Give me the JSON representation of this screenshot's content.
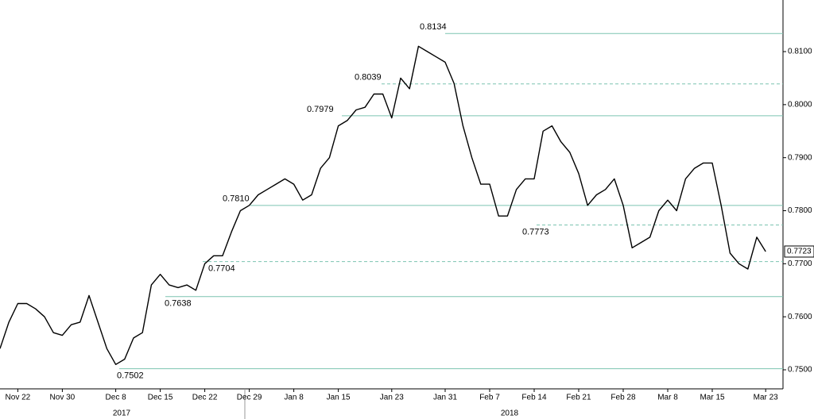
{
  "chart_data": {
    "type": "line",
    "categories": [
      null,
      null,
      "Nov 22",
      null,
      null,
      null,
      null,
      "Nov 30",
      null,
      null,
      null,
      null,
      null,
      "Dec 8",
      null,
      null,
      null,
      null,
      "Dec 15",
      null,
      null,
      null,
      null,
      "Dec 22",
      null,
      null,
      null,
      null,
      "Dec 29",
      null,
      null,
      null,
      null,
      "Jan 8",
      null,
      null,
      null,
      null,
      "Jan 15",
      null,
      null,
      null,
      null,
      null,
      "Jan 23",
      null,
      null,
      null,
      null,
      null,
      "Jan 31",
      null,
      null,
      null,
      null,
      "Feb 7",
      null,
      null,
      null,
      null,
      "Feb 14",
      null,
      null,
      null,
      null,
      "Feb 21",
      null,
      null,
      null,
      null,
      "Feb 28",
      null,
      null,
      null,
      null,
      "Mar 8",
      null,
      null,
      null,
      null,
      "Mar 15",
      null,
      null,
      null,
      null,
      null,
      "Mar 23"
    ],
    "series": [
      {
        "color": "#000000",
        "values": [
          0.754,
          0.759,
          0.7625,
          0.7625,
          0.7615,
          0.76,
          0.757,
          0.7565,
          0.7585,
          0.759,
          0.764,
          0.759,
          0.754,
          0.751,
          0.752,
          0.756,
          0.757,
          0.766,
          0.768,
          0.766,
          0.7655,
          0.766,
          0.765,
          0.77,
          0.7715,
          0.7715,
          0.776,
          0.78,
          0.781,
          0.783,
          0.784,
          0.785,
          0.786,
          0.785,
          0.782,
          0.783,
          0.788,
          0.79,
          0.796,
          0.797,
          0.799,
          0.7995,
          0.802,
          0.802,
          0.7975,
          0.805,
          0.803,
          0.811,
          0.81,
          0.809,
          0.808,
          0.804,
          0.796,
          0.79,
          0.785,
          0.785,
          0.779,
          0.779,
          0.784,
          0.786,
          0.786,
          0.795,
          0.796,
          0.793,
          0.791,
          0.787,
          0.781,
          0.783,
          0.784,
          0.786,
          0.781,
          0.773,
          0.774,
          0.775,
          0.78,
          0.782,
          0.78,
          0.786,
          0.788,
          0.789,
          0.789,
          0.781,
          0.772,
          0.77,
          0.769,
          0.775,
          0.7723
        ]
      }
    ],
    "last_label": "0.7723",
    "levels": [
      {
        "value": 0.8134,
        "label": "0.8134",
        "dashed": false
      },
      {
        "value": 0.8039,
        "label": "0.8039",
        "dashed": true
      },
      {
        "value": 0.7979,
        "label": "0.7979",
        "dashed": false
      },
      {
        "value": 0.781,
        "label": "0.7810",
        "dashed": false
      },
      {
        "value": 0.7773,
        "label": "0.7773",
        "dashed": true
      },
      {
        "value": 0.7704,
        "label": "0.7704",
        "dashed": true
      },
      {
        "value": 0.7638,
        "label": "0.7638",
        "dashed": false
      },
      {
        "value": 0.7502,
        "label": "0.7502",
        "dashed": false
      }
    ],
    "level_color": "#7cc4b0",
    "years": [
      "2017",
      "2018"
    ],
    "ylim": [
      0.74641,
      0.81973
    ],
    "yticks": [
      {
        "value": 0.75,
        "label": "0.7500"
      },
      {
        "value": 0.76,
        "label": "0.7600"
      },
      {
        "value": 0.77,
        "label": "0.7700"
      },
      {
        "value": 0.78,
        "label": "0.7800"
      },
      {
        "value": 0.79,
        "label": "0.7900"
      },
      {
        "value": 0.8,
        "label": "0.8000"
      },
      {
        "value": 0.81,
        "label": "0.8100"
      }
    ]
  }
}
